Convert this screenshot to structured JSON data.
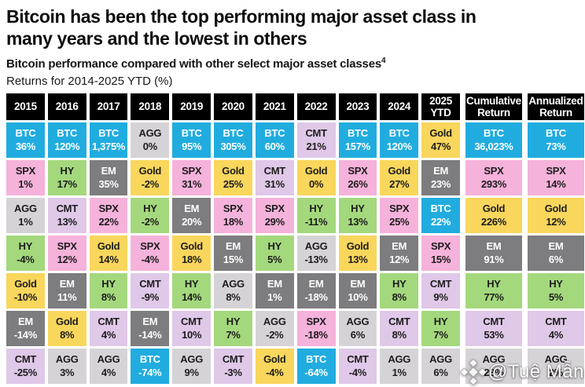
{
  "page": {
    "title_line1": "Bitcoin has been the top performing major asset class in",
    "title_line2": "many years and the lowest in others",
    "subtitle": "Bitcoin performance compared with other select major asset classes",
    "subtitle_footnote": "4",
    "caption": "Returns for 2014-2025 YTD (%)"
  },
  "asset_colors": {
    "BTC": {
      "bg": "#21ACDF",
      "fg": "#ffffff"
    },
    "SPX": {
      "bg": "#F5B2DA",
      "fg": "#1c1c1c"
    },
    "HY": {
      "bg": "#A4D87D",
      "fg": "#1c1c1c"
    },
    "EM": {
      "bg": "#7D7C7E",
      "fg": "#ffffff"
    },
    "Gold": {
      "bg": "#F9D65C",
      "fg": "#1c1c1c"
    },
    "AGG": {
      "bg": "#D6D3D7",
      "fg": "#1c1c1c"
    },
    "CMT": {
      "bg": "#DFC8E8",
      "fg": "#1c1c1c"
    }
  },
  "chart_data": {
    "type": "table",
    "title": "Bitcoin has been the top performing major asset class in many years and the lowest in others",
    "subtitle": "Bitcoin performance compared with other select major asset classes",
    "caption": "Returns for 2014-2025 YTD (%)",
    "legend_assets": [
      "BTC",
      "SPX",
      "HY",
      "EM",
      "Gold",
      "AGG",
      "CMT"
    ],
    "columns": [
      "2015",
      "2016",
      "2017",
      "2018",
      "2019",
      "2020",
      "2021",
      "2022",
      "2023",
      "2024",
      "2025 YTD",
      "Cumulative Return",
      "Annualized Return"
    ],
    "rows": [
      [
        [
          "BTC",
          "36%"
        ],
        [
          "BTC",
          "120%"
        ],
        [
          "BTC",
          "1,375%"
        ],
        [
          "AGG",
          "0%"
        ],
        [
          "BTC",
          "95%"
        ],
        [
          "BTC",
          "305%"
        ],
        [
          "BTC",
          "60%"
        ],
        [
          "CMT",
          "21%"
        ],
        [
          "BTC",
          "157%"
        ],
        [
          "BTC",
          "120%"
        ],
        [
          "Gold",
          "47%"
        ],
        [
          "BTC",
          "36,023%"
        ],
        [
          "BTC",
          "73%"
        ]
      ],
      [
        [
          "SPX",
          "1%"
        ],
        [
          "HY",
          "17%"
        ],
        [
          "EM",
          "35%"
        ],
        [
          "Gold",
          "-2%"
        ],
        [
          "SPX",
          "31%"
        ],
        [
          "Gold",
          "25%"
        ],
        [
          "CMT",
          "31%"
        ],
        [
          "Gold",
          "0%"
        ],
        [
          "SPX",
          "26%"
        ],
        [
          "Gold",
          "27%"
        ],
        [
          "EM",
          "23%"
        ],
        [
          "SPX",
          "293%"
        ],
        [
          "SPX",
          "14%"
        ]
      ],
      [
        [
          "AGG",
          "1%"
        ],
        [
          "CMT",
          "13%"
        ],
        [
          "SPX",
          "22%"
        ],
        [
          "HY",
          "-2%"
        ],
        [
          "EM",
          "20%"
        ],
        [
          "SPX",
          "18%"
        ],
        [
          "SPX",
          "29%"
        ],
        [
          "HY",
          "-11%"
        ],
        [
          "HY",
          "13%"
        ],
        [
          "SPX",
          "25%"
        ],
        [
          "BTC",
          "22%"
        ],
        [
          "Gold",
          "226%"
        ],
        [
          "Gold",
          "12%"
        ]
      ],
      [
        [
          "HY",
          "-4%"
        ],
        [
          "SPX",
          "12%"
        ],
        [
          "Gold",
          "14%"
        ],
        [
          "SPX",
          "-4%"
        ],
        [
          "Gold",
          "18%"
        ],
        [
          "EM",
          "15%"
        ],
        [
          "HY",
          "5%"
        ],
        [
          "AGG",
          "-13%"
        ],
        [
          "Gold",
          "13%"
        ],
        [
          "EM",
          "12%"
        ],
        [
          "SPX",
          "15%"
        ],
        [
          "EM",
          "91%"
        ],
        [
          "EM",
          "6%"
        ]
      ],
      [
        [
          "Gold",
          "-10%"
        ],
        [
          "EM",
          "11%"
        ],
        [
          "HY",
          "8%"
        ],
        [
          "CMT",
          "-9%"
        ],
        [
          "HY",
          "14%"
        ],
        [
          "AGG",
          "8%"
        ],
        [
          "EM",
          "1%"
        ],
        [
          "EM",
          "-18%"
        ],
        [
          "EM",
          "10%"
        ],
        [
          "HY",
          "8%"
        ],
        [
          "CMT",
          "9%"
        ],
        [
          "HY",
          "77%"
        ],
        [
          "HY",
          "5%"
        ]
      ],
      [
        [
          "EM",
          "-14%"
        ],
        [
          "Gold",
          "8%"
        ],
        [
          "CMT",
          "4%"
        ],
        [
          "EM",
          "-14%"
        ],
        [
          "CMT",
          "10%"
        ],
        [
          "HY",
          "7%"
        ],
        [
          "AGG",
          "-2%"
        ],
        [
          "SPX",
          "-18%"
        ],
        [
          "AGG",
          "6%"
        ],
        [
          "CMT",
          "8%"
        ],
        [
          "HY",
          "7%"
        ],
        [
          "CMT",
          "53%"
        ],
        [
          "CMT",
          "4%"
        ]
      ],
      [
        [
          "CMT",
          "-25%"
        ],
        [
          "AGG",
          "3%"
        ],
        [
          "AGG",
          "4%"
        ],
        [
          "BTC",
          "-74%"
        ],
        [
          "AGG",
          "9%"
        ],
        [
          "CMT",
          "-3%"
        ],
        [
          "Gold",
          "-4%"
        ],
        [
          "BTC",
          "-64%"
        ],
        [
          "CMT",
          "-4%"
        ],
        [
          "AGG",
          "1%"
        ],
        [
          "AGG",
          "6%"
        ],
        [
          "AGG",
          "23%"
        ],
        [
          "AGG",
          "2%"
        ]
      ]
    ]
  },
  "watermark": {
    "text": "@Tuệ Mẫn"
  }
}
